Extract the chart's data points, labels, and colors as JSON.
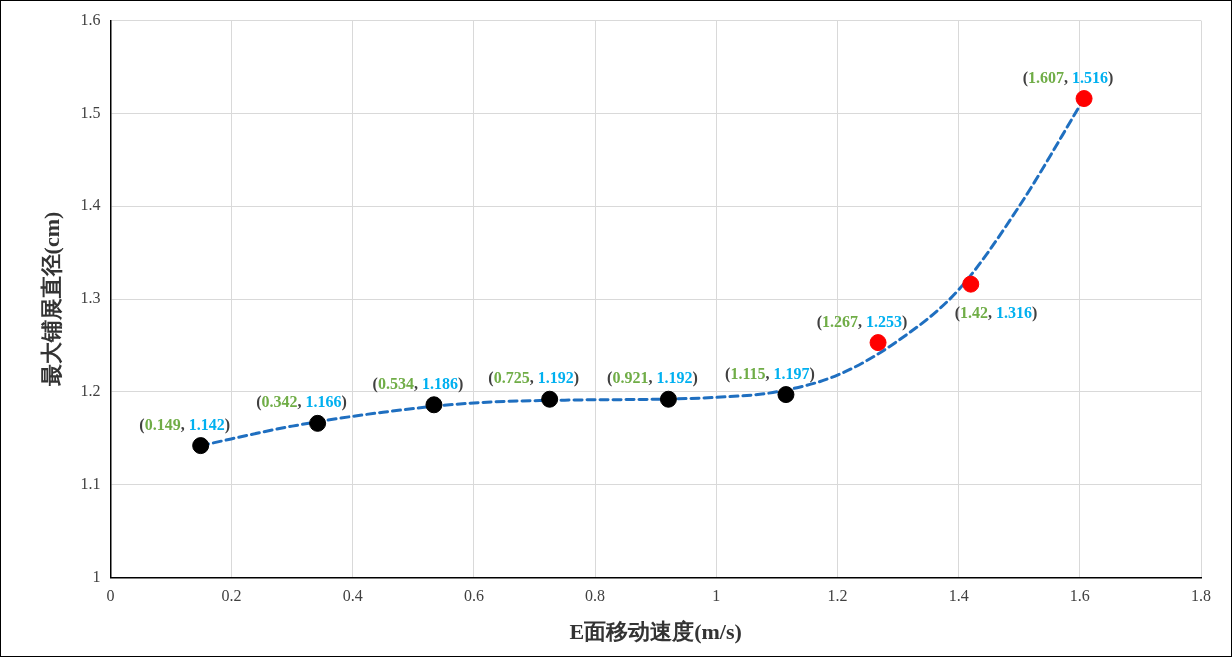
{
  "chart_data": {
    "type": "scatter",
    "xlabel": "E面移动速度(m/s)",
    "ylabel": "最大铺展直径(cm)",
    "x": [
      0.149,
      0.342,
      0.534,
      0.725,
      0.921,
      1.115,
      1.267,
      1.42,
      1.607
    ],
    "series": [
      {
        "values": [
          1.142,
          1.166,
          1.186,
          1.192,
          1.192,
          1.197,
          1.253,
          1.316,
          1.516
        ],
        "value_labels": [
          "(0.149, 1.142)",
          "(0.342, 1.166)",
          "(0.534, 1.186)",
          "(0.725, 1.192)",
          "(0.921, 1.192)",
          "(1.115, 1.197)",
          "(1.267, 1.253)",
          "(1.42, 1.316)",
          "(1.607, 1.516)"
        ],
        "colors": [
          "#000000",
          "#000000",
          "#000000",
          "#000000",
          "#000000",
          "#000000",
          "#ff0000",
          "#ff0000",
          "#ff0000"
        ],
        "marker": "circle"
      },
      {
        "type": "line",
        "color": "#1f6fc0",
        "line_style": "dashed",
        "marker": "none",
        "x": [
          0.149,
          0.3,
          0.45,
          0.6,
          0.75,
          0.9,
          1.0,
          1.1,
          1.2,
          1.3,
          1.4,
          1.5,
          1.607
        ],
        "values": [
          1.142,
          1.163,
          1.178,
          1.188,
          1.191,
          1.192,
          1.194,
          1.2,
          1.218,
          1.255,
          1.31,
          1.4,
          1.516
        ]
      }
    ],
    "xlim": [
      0,
      1.8
    ],
    "xticks": [
      0,
      0.2,
      0.4,
      0.6,
      0.8,
      1,
      1.2,
      1.4,
      1.6,
      1.8
    ],
    "ylim": [
      1,
      1.6
    ],
    "yticks": [
      1,
      1.1,
      1.2,
      1.3,
      1.4,
      1.5,
      1.6
    ],
    "grid": true,
    "legend": false
  }
}
